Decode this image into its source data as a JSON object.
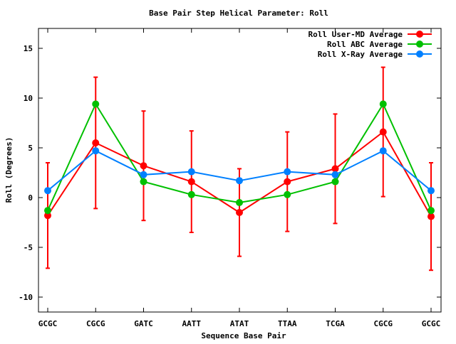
{
  "chart_data": {
    "type": "line",
    "title": "Base Pair Step Helical Parameter: Roll",
    "xlabel": "Sequence Base Pair",
    "ylabel": "Roll (Degrees)",
    "categories": [
      "GCGC",
      "CGCG",
      "GATC",
      "AATT",
      "ATAT",
      "TTAA",
      "TCGA",
      "CGCG",
      "GCGC"
    ],
    "ylim": [
      -11.5,
      17
    ],
    "yticks": [
      -10,
      -5,
      0,
      5,
      10,
      15
    ],
    "ytick_labels": [
      "-10",
      "-5",
      "0",
      "5",
      "10",
      "15"
    ],
    "grid": false,
    "legend_position": "top-right",
    "series": [
      {
        "name": "Roll User-MD Average",
        "color": "#ff0000",
        "values": [
          -1.8,
          5.5,
          3.2,
          1.6,
          -1.5,
          1.6,
          2.9,
          6.6,
          -1.9
        ],
        "error": [
          5.3,
          6.6,
          5.5,
          5.1,
          4.4,
          5.0,
          5.5,
          6.5,
          5.4
        ]
      },
      {
        "name": "Roll ABC Average",
        "color": "#00c000",
        "values": [
          -1.3,
          9.4,
          1.6,
          0.3,
          -0.5,
          0.3,
          1.6,
          9.4,
          -1.3
        ]
      },
      {
        "name": "Roll X-Ray Average",
        "color": "#0080ff",
        "values": [
          0.7,
          4.7,
          2.3,
          2.6,
          1.7,
          2.6,
          2.3,
          4.7,
          0.7
        ]
      }
    ]
  }
}
